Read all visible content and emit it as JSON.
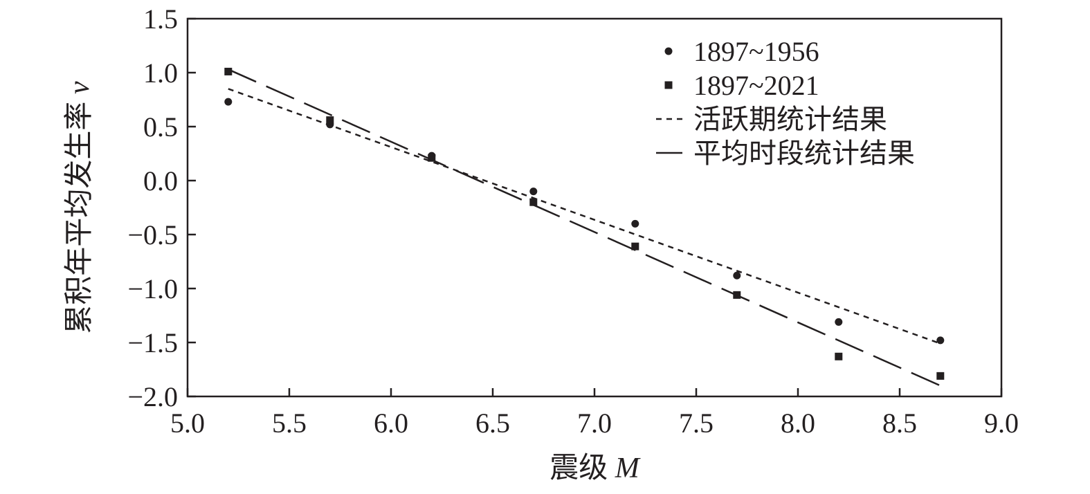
{
  "chart_data": {
    "type": "scatter",
    "xlabel": {
      "text": "震级 ",
      "var": "M"
    },
    "ylabel": {
      "text": "累积年平均发生率 ",
      "var": "v"
    },
    "xlim": [
      5.0,
      9.0
    ],
    "ylim": [
      -2.0,
      1.5
    ],
    "xticks": [
      "5.0",
      "5.5",
      "6.0",
      "6.5",
      "7.0",
      "7.5",
      "8.0",
      "8.5",
      "9.0"
    ],
    "yticks": [
      "1.5",
      "1.0",
      "0.5",
      "0.0",
      "−0.5",
      "−1.0",
      "−1.5",
      "−2.0"
    ],
    "grid": false,
    "legend_position": "top-right",
    "series": [
      {
        "name": "1897~1956",
        "marker": "circle",
        "x": [
          5.2,
          5.7,
          6.2,
          6.7,
          7.2,
          7.7,
          8.2,
          8.7
        ],
        "y": [
          0.73,
          0.52,
          0.23,
          -0.1,
          -0.4,
          -0.88,
          -1.31,
          -1.48
        ]
      },
      {
        "name": "1897~2021",
        "marker": "square",
        "x": [
          5.2,
          5.7,
          6.2,
          6.7,
          7.2,
          7.7,
          8.2,
          8.7
        ],
        "y": [
          1.01,
          0.56,
          0.21,
          -0.2,
          -0.61,
          -1.06,
          -1.63,
          -1.81
        ]
      }
    ],
    "fit_lines": [
      {
        "name": "活跃期统计结果",
        "style": "dotted",
        "x": [
          5.2,
          8.7
        ],
        "y": [
          0.85,
          -1.51
        ]
      },
      {
        "name": "平均时段统计结果",
        "style": "long-dash",
        "x": [
          5.2,
          8.7
        ],
        "y": [
          1.03,
          -1.9
        ]
      }
    ],
    "colors": {
      "ink": "#231f20",
      "background": "#ffffff"
    }
  }
}
